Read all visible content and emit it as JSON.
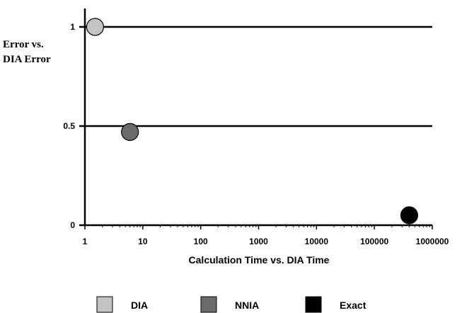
{
  "chart_data": {
    "type": "scatter",
    "xlabel": "Calculation  Time  vs. DIA Time",
    "ylabel": [
      "Error vs.",
      "DIA  Error"
    ],
    "x_scale": "log",
    "xlim": [
      1,
      1000000
    ],
    "ylim": [
      0,
      1.1
    ],
    "x_ticks": [
      {
        "value": 1,
        "label": "1"
      },
      {
        "value": 10,
        "label": "10"
      },
      {
        "value": 100,
        "label": "100"
      },
      {
        "value": 1000,
        "label": "1000"
      },
      {
        "value": 10000,
        "label": "10000"
      },
      {
        "value": 100000,
        "label": "100000"
      },
      {
        "value": 1000000,
        "label": "1000000"
      }
    ],
    "y_ticks": [
      {
        "value": 0,
        "label": "0"
      },
      {
        "value": 0.5,
        "label": "0.5"
      },
      {
        "value": 1,
        "label": "1"
      }
    ],
    "horizontal_lines": [
      0.5,
      1
    ],
    "series": [
      {
        "name": "DIA",
        "color": "#c4c4c4",
        "points": [
          {
            "x": 1.5,
            "y": 1.0
          }
        ]
      },
      {
        "name": "NNIA",
        "color": "#6b6b6b",
        "points": [
          {
            "x": 6,
            "y": 0.47
          }
        ]
      },
      {
        "name": "Exact",
        "color": "#000000",
        "points": [
          {
            "x": 400000,
            "y": 0.05
          }
        ]
      }
    ],
    "legend_position": "bottom"
  }
}
